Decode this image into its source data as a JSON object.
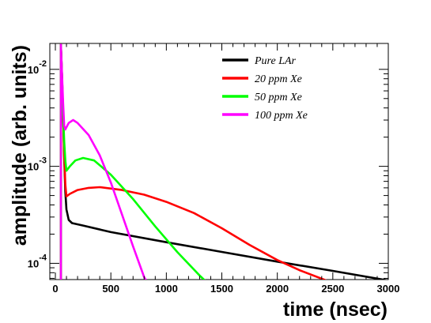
{
  "chart_data": {
    "type": "line",
    "title": "",
    "xlabel": "time (nsec)",
    "ylabel": "amplitude (arb. units)",
    "xlim": [
      -50,
      3000
    ],
    "ylim": [
      6.8e-05,
      0.0185
    ],
    "yscale": "log",
    "grid": false,
    "legend_position": "top-right",
    "x_ticks": [
      {
        "value": 0,
        "label": "0"
      },
      {
        "value": 500,
        "label": "500"
      },
      {
        "value": 1000,
        "label": "1000"
      },
      {
        "value": 1500,
        "label": "1500"
      },
      {
        "value": 2000,
        "label": "2000"
      },
      {
        "value": 2500,
        "label": "2500"
      },
      {
        "value": 3000,
        "label": "3000"
      }
    ],
    "y_ticks": [
      {
        "value": 0.01,
        "base": "10",
        "exp": "-2"
      },
      {
        "value": 0.001,
        "base": "10",
        "exp": "-3"
      },
      {
        "value": 0.0001,
        "base": "10",
        "exp": "-4"
      }
    ],
    "series": [
      {
        "name": "Pure LAr",
        "color": "#000000",
        "points": [
          [
            50,
            6.8e-05
          ],
          [
            50,
            0.018
          ],
          [
            60,
            0.0085
          ],
          [
            70,
            0.0035
          ],
          [
            80,
            0.0012
          ],
          [
            90,
            0.00055
          ],
          [
            100,
            0.00036
          ],
          [
            120,
            0.00028
          ],
          [
            150,
            0.00026
          ],
          [
            250,
            0.000245
          ],
          [
            500,
            0.00021
          ],
          [
            1000,
            0.000165
          ],
          [
            1500,
            0.000131
          ],
          [
            2000,
            0.000104
          ],
          [
            2500,
            8.35e-05
          ],
          [
            3000,
            6.65e-05
          ]
        ]
      },
      {
        "name": "20 ppm Xe",
        "color": "#ff0000",
        "points": [
          [
            50,
            6.8e-05
          ],
          [
            50,
            0.018
          ],
          [
            60,
            0.0085
          ],
          [
            70,
            0.0035
          ],
          [
            80,
            0.0013
          ],
          [
            90,
            0.00065
          ],
          [
            100,
            0.00049
          ],
          [
            130,
            0.00052
          ],
          [
            200,
            0.00057
          ],
          [
            300,
            0.0006
          ],
          [
            400,
            0.00061
          ],
          [
            600,
            0.00057
          ],
          [
            800,
            0.00051
          ],
          [
            1000,
            0.00043
          ],
          [
            1250,
            0.00033
          ],
          [
            1500,
            0.00023
          ],
          [
            1750,
            0.000155
          ],
          [
            2000,
            0.000108
          ],
          [
            2200,
            8.5e-05
          ],
          [
            2450,
            6.6e-05
          ]
        ]
      },
      {
        "name": "50 ppm Xe",
        "color": "#00ff00",
        "points": [
          [
            50,
            6.8e-05
          ],
          [
            50,
            0.018
          ],
          [
            60,
            0.0085
          ],
          [
            70,
            0.0035
          ],
          [
            80,
            0.0018
          ],
          [
            90,
            0.00115
          ],
          [
            100,
            0.0009
          ],
          [
            130,
            0.001
          ],
          [
            180,
            0.00115
          ],
          [
            250,
            0.00122
          ],
          [
            350,
            0.00115
          ],
          [
            500,
            0.00082
          ],
          [
            700,
            0.00046
          ],
          [
            900,
            0.00024
          ],
          [
            1100,
            0.00013
          ],
          [
            1300,
            7.5e-05
          ],
          [
            1350,
            6.6e-05
          ]
        ]
      },
      {
        "name": "100 ppm Xe",
        "color": "#ff00ff",
        "points": [
          [
            50,
            6.8e-05
          ],
          [
            50,
            0.018
          ],
          [
            60,
            0.009
          ],
          [
            70,
            0.0045
          ],
          [
            80,
            0.0026
          ],
          [
            90,
            0.0024
          ],
          [
            120,
            0.0028
          ],
          [
            160,
            0.003
          ],
          [
            200,
            0.0028
          ],
          [
            300,
            0.0021
          ],
          [
            400,
            0.0013
          ],
          [
            500,
            0.00068
          ],
          [
            600,
            0.00032
          ],
          [
            700,
            0.00015
          ],
          [
            800,
            7.2e-05
          ],
          [
            820,
            6.6e-05
          ]
        ]
      }
    ]
  }
}
